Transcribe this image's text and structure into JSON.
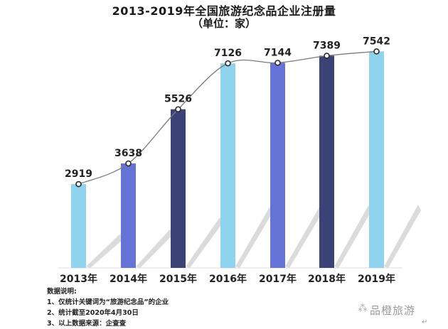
{
  "title": "2013-2019年全国旅游纪念品企业注册量",
  "subtitle": "（单位：家）",
  "chart_data": {
    "type": "bar",
    "title": "2013-2019年全国旅游纪念品企业注册量",
    "subtitle": "（单位：家）",
    "categories": [
      "2013年",
      "2014年",
      "2015年",
      "2016年",
      "2017年",
      "2018年",
      "2019年"
    ],
    "values": [
      2919,
      3638,
      5526,
      7126,
      7144,
      7389,
      7542
    ],
    "bar_colors": [
      "#8fd3ef",
      "#6673d6",
      "#3b4275",
      "#8fd3ef",
      "#6673d6",
      "#3b4275",
      "#8fd3ef"
    ],
    "overlay_line": {
      "type": "smooth-line",
      "color": "#777777",
      "marker": "hollow-circle",
      "values": [
        2919,
        3638,
        5526,
        7126,
        7144,
        7389,
        7542
      ]
    },
    "xlabel": "",
    "ylabel": "",
    "ylim": [
      0,
      7800
    ],
    "grid": false,
    "legend": null,
    "data_labels": true
  },
  "notes": {
    "heading": "数据说明:",
    "items": [
      "1、仅统计关键词为“旅游纪念品”的企业",
      "2、统计截至2020年4月30日",
      "3、以上数据来源：企查查"
    ]
  },
  "watermark": {
    "icon": "wechat-icon",
    "text": "品橙旅游"
  },
  "return_mark": "↵"
}
